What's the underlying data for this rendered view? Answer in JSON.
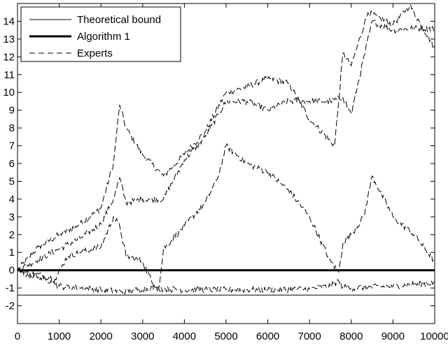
{
  "chart_data": {
    "type": "line",
    "title": "",
    "xlabel": "",
    "ylabel": "",
    "xlim": [
      0,
      10000
    ],
    "ylim": [
      -3,
      15
    ],
    "xticks": [
      0,
      1000,
      2000,
      3000,
      4000,
      5000,
      6000,
      7000,
      8000,
      9000,
      10000
    ],
    "yticks": [
      -2,
      -1,
      0,
      1,
      2,
      3,
      4,
      5,
      6,
      7,
      8,
      9,
      10,
      11,
      12,
      13,
      14
    ],
    "grid": false,
    "legend_position": "top-left",
    "legend": [
      {
        "label": "Theoretical bound",
        "style": "thin-solid"
      },
      {
        "label": "Algorithm 1",
        "style": "thick-solid"
      },
      {
        "label": "Experts",
        "style": "dashed"
      }
    ],
    "series": [
      {
        "name": "Theoretical bound",
        "style": "thin-solid",
        "x": [
          0,
          10000
        ],
        "y": [
          -1.4,
          -1.4
        ]
      },
      {
        "name": "Algorithm 1",
        "style": "thick-solid",
        "x": [
          0,
          10000
        ],
        "y": [
          0,
          0
        ]
      },
      {
        "name": "Experts",
        "style": "dashed",
        "x": [
          0,
          500,
          1000,
          1500,
          2000,
          2300,
          2450,
          2600,
          3000,
          3500,
          4000,
          4500,
          5000,
          5500,
          6000,
          6500,
          7000,
          7600,
          7700,
          7800,
          8000,
          8400,
          9000,
          9400,
          10000
        ],
        "y": [
          0,
          1.3,
          2.0,
          2.6,
          3.5,
          6.0,
          9.3,
          8.0,
          6.5,
          5.3,
          6.5,
          7.8,
          10.0,
          10.3,
          10.8,
          10.5,
          8.5,
          7.0,
          9.5,
          12.2,
          11.5,
          14.5,
          13.8,
          14.9,
          12.5
        ]
      },
      {
        "name": "Experts",
        "style": "dashed",
        "x": [
          0,
          500,
          1000,
          1500,
          2000,
          2300,
          2450,
          2600,
          3000,
          3500,
          4000,
          4500,
          5000,
          5500,
          6000,
          6500,
          7000,
          7500,
          7800,
          8000,
          8500,
          9000,
          9500,
          10000
        ],
        "y": [
          0,
          0.6,
          1.2,
          1.8,
          2.6,
          4.0,
          5.2,
          3.8,
          4.0,
          4.0,
          6.2,
          7.5,
          9.5,
          9.5,
          9.0,
          9.5,
          9.5,
          9.5,
          9.7,
          8.8,
          14.0,
          13.5,
          13.6,
          13.6
        ]
      },
      {
        "name": "Experts",
        "style": "dashed",
        "x": [
          0,
          300,
          600,
          900,
          1200,
          1500,
          2000,
          2300,
          2450,
          2600,
          3000,
          3250,
          3400,
          3500,
          4000,
          4500,
          4800,
          5000,
          5500,
          6000,
          6500,
          7000,
          7500,
          7700,
          7800,
          8000,
          8300,
          8500,
          9000,
          9500,
          10000
        ],
        "y": [
          0,
          -0.2,
          -0.3,
          -0.5,
          0.8,
          1.0,
          1.3,
          3.0,
          2.5,
          0.8,
          0.5,
          -0.8,
          -0.9,
          1.2,
          2.5,
          3.8,
          5.2,
          7.0,
          6.0,
          5.5,
          4.5,
          3.0,
          0.5,
          -0.1,
          1.5,
          2.0,
          3.0,
          5.3,
          3.0,
          2.0,
          0.5
        ]
      },
      {
        "name": "Experts",
        "style": "dashed",
        "x": [
          0,
          500,
          800,
          1000,
          1500,
          2000,
          2500,
          3000,
          3300,
          3500,
          4000,
          5000,
          6000,
          7000,
          7500,
          7700,
          7800,
          8000,
          9000,
          10000
        ],
        "y": [
          -0.1,
          -0.4,
          -0.6,
          -0.9,
          -1.0,
          -1.1,
          -1.2,
          -1.05,
          -1.0,
          -1.05,
          -1.1,
          -1.1,
          -1.1,
          -1.05,
          -0.9,
          -0.6,
          -0.95,
          -1.0,
          -0.9,
          -0.7
        ]
      }
    ]
  }
}
